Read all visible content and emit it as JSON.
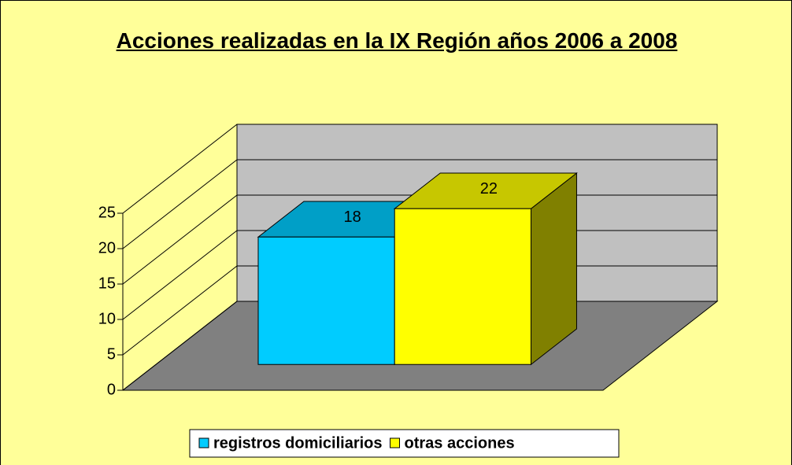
{
  "chart_data": {
    "type": "bar",
    "title": "Acciones realizadas en la IX Región años 2006 a 2008",
    "categories": [
      null
    ],
    "series": [
      {
        "name": "registros domiciliarios",
        "color": "#00ccff",
        "values": [
          18
        ]
      },
      {
        "name": "otras acciones",
        "color": "#ffff00",
        "values": [
          22
        ]
      }
    ],
    "ylim": [
      0,
      25
    ],
    "yticks": [
      0,
      5,
      10,
      15,
      20,
      25
    ],
    "grid": true,
    "legend": "bottom"
  }
}
